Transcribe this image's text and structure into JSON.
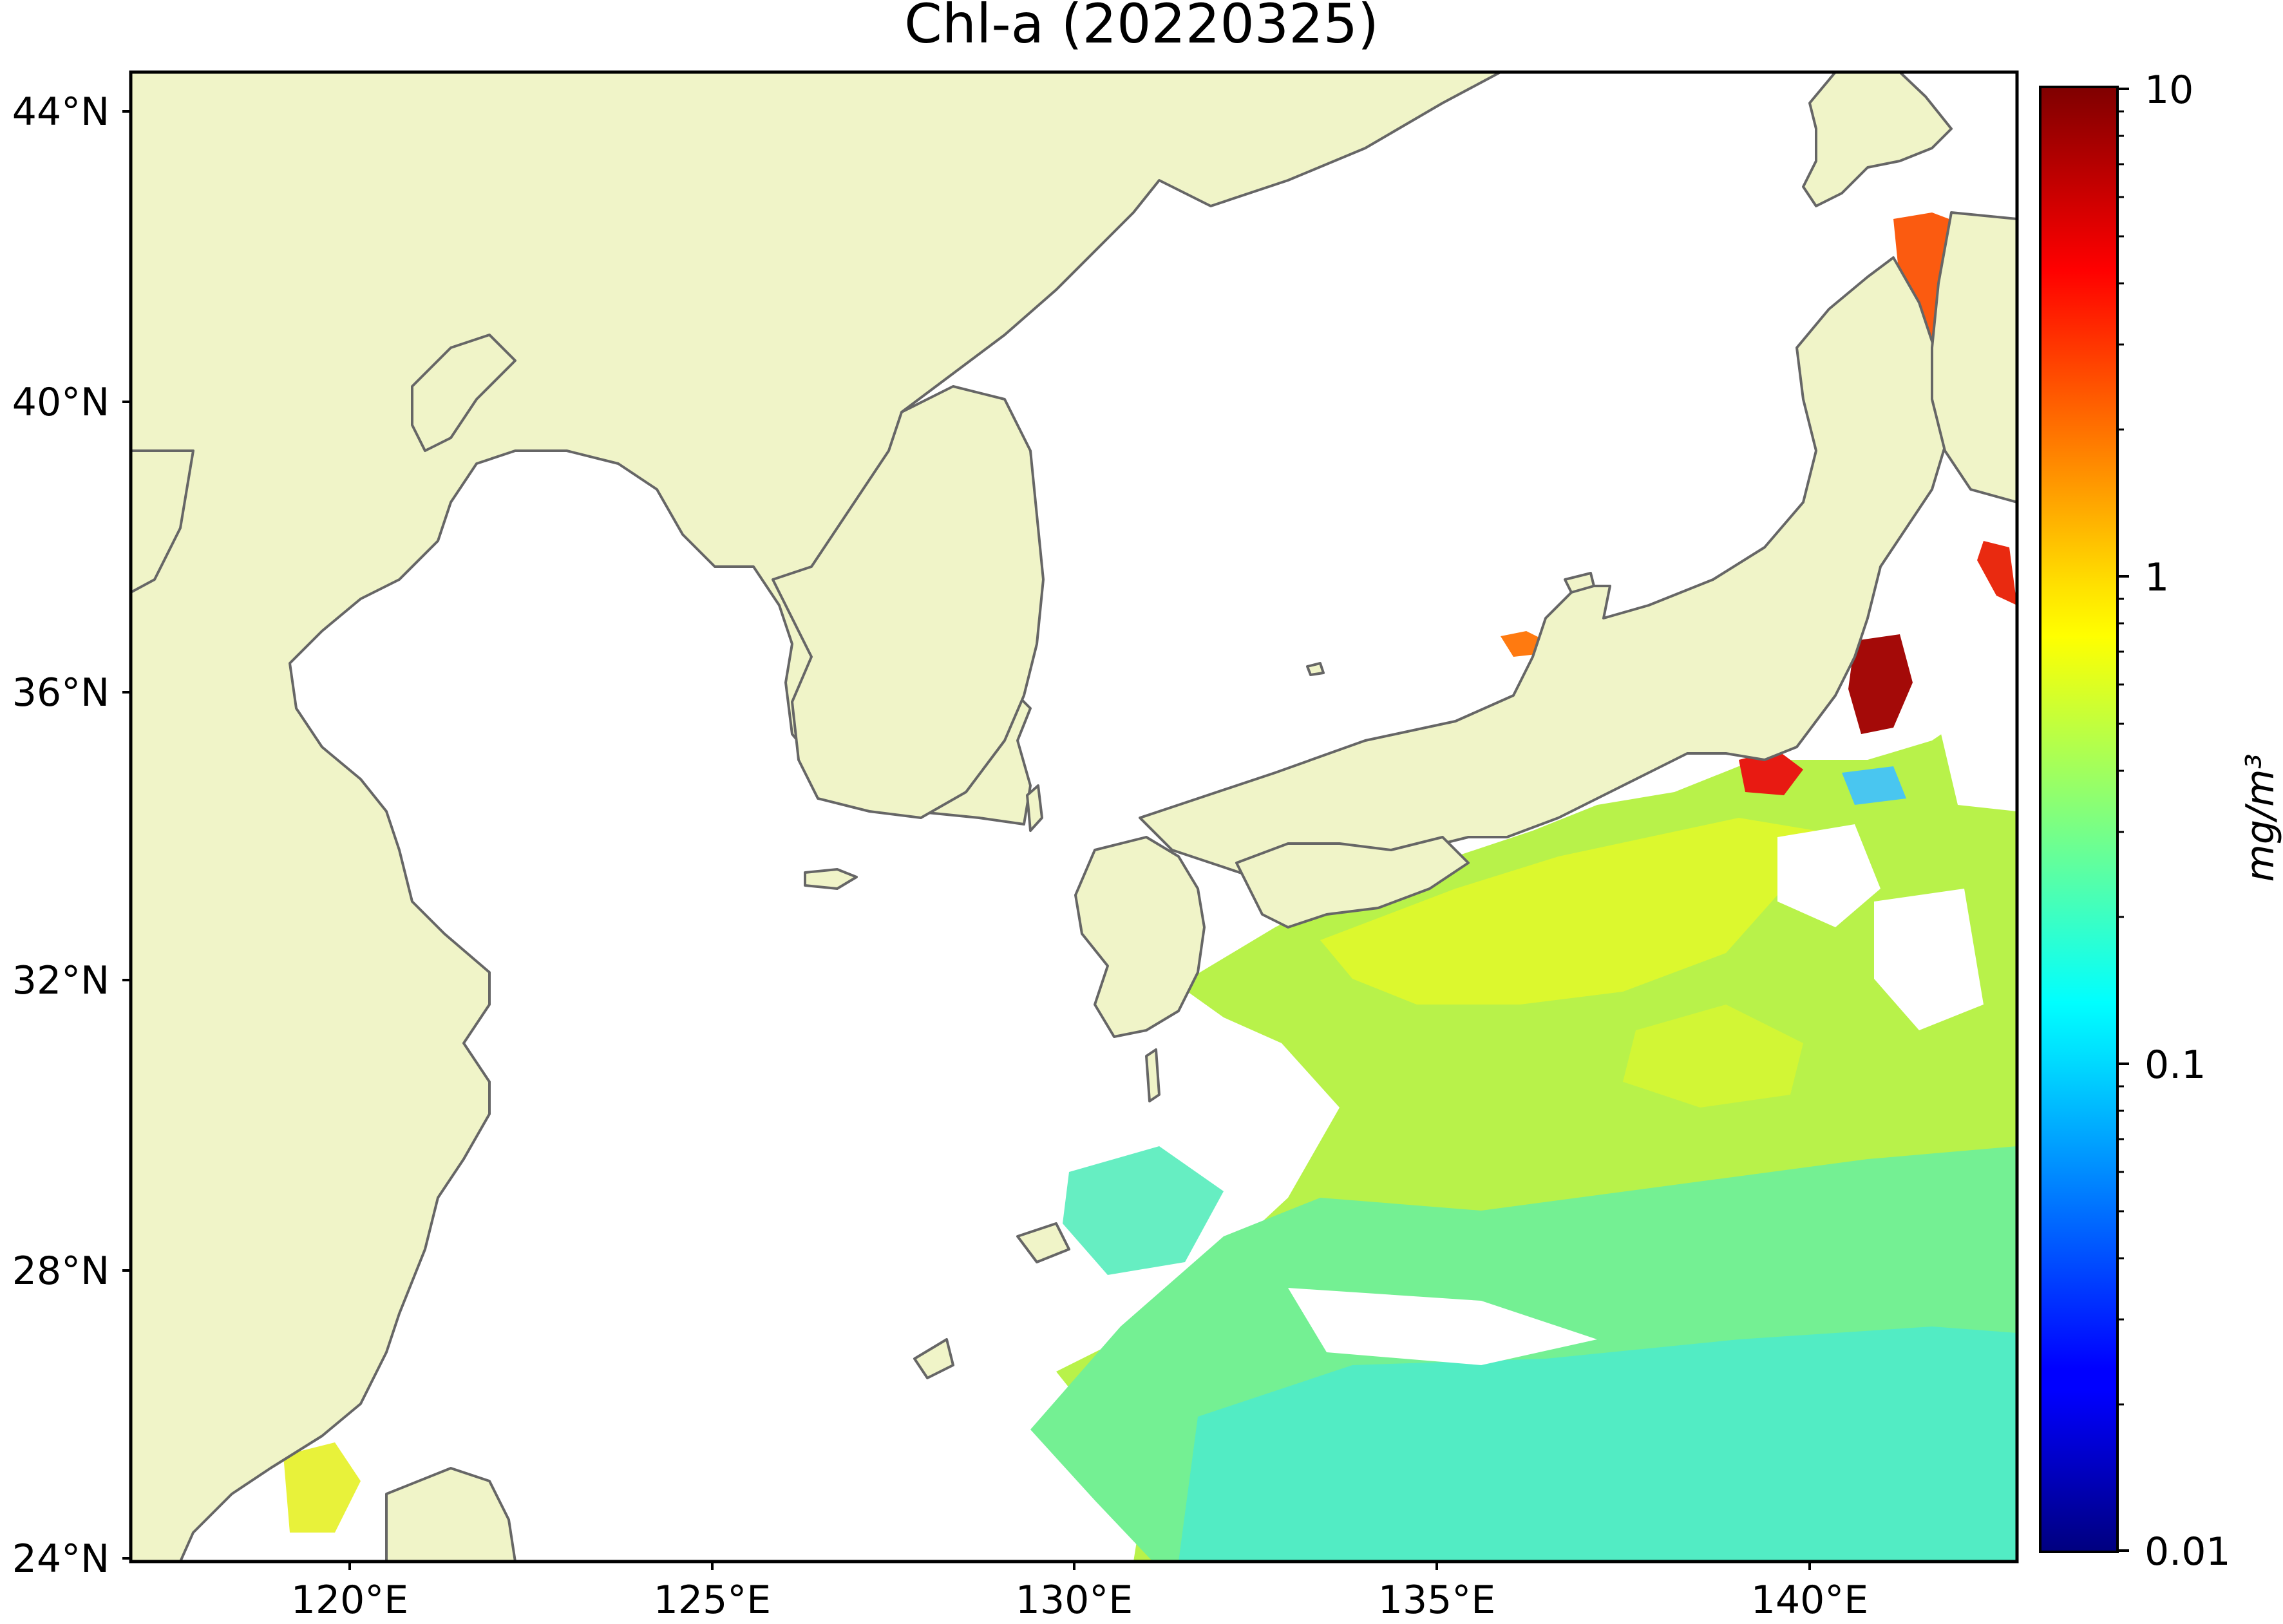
{
  "title": "Chl-a (20220325)",
  "map": {
    "projection": "equirectangular",
    "lon_range": [
      117,
      143
    ],
    "lat_range": [
      24,
      44.5
    ],
    "land_color": "#f0f4c8",
    "coast_color": "#666666",
    "missing_color": "#ffffff",
    "lat_ticks": [
      {
        "value": 44,
        "label": "44°N"
      },
      {
        "value": 40,
        "label": "40°N"
      },
      {
        "value": 36,
        "label": "36°N"
      },
      {
        "value": 32,
        "label": "32°N"
      },
      {
        "value": 28,
        "label": "28°N"
      },
      {
        "value": 24,
        "label": "24°N"
      }
    ],
    "lon_ticks": [
      {
        "value": 120,
        "label": "120°E"
      },
      {
        "value": 125,
        "label": "125°E"
      },
      {
        "value": 130,
        "label": "130°E"
      },
      {
        "value": 135,
        "label": "135°E"
      },
      {
        "value": 140,
        "label": "140°E"
      }
    ]
  },
  "colorbar": {
    "label": "mg/m³",
    "scale": "log",
    "range": [
      0.01,
      10
    ],
    "colormap": "jet",
    "ticks": [
      {
        "value": 10,
        "label": "10"
      },
      {
        "value": 1,
        "label": "1"
      },
      {
        "value": 0.1,
        "label": "0.1"
      },
      {
        "value": 0.01,
        "label": "0.01"
      }
    ]
  }
}
